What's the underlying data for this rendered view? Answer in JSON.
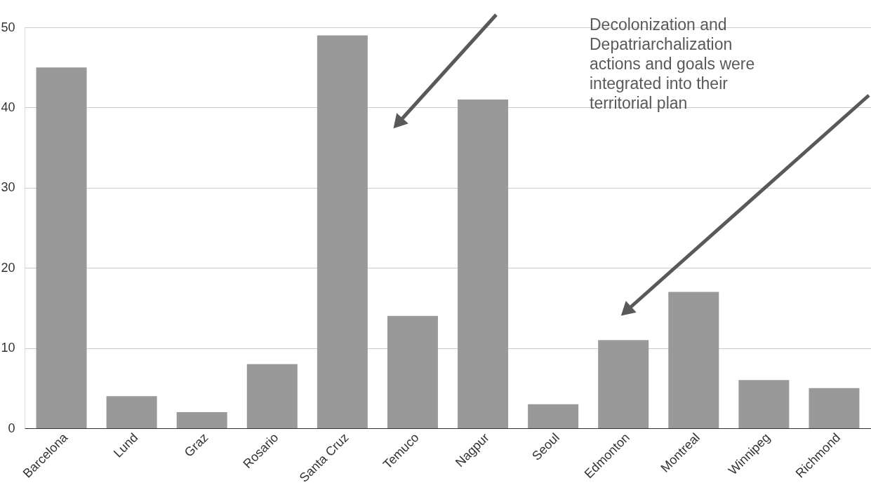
{
  "chart_data": {
    "type": "bar",
    "categories": [
      "Barcelona",
      "Lund",
      "Graz",
      "Rosario",
      "Santa Cruz",
      "Temuco",
      "Nagpur",
      "Seoul",
      "Edmonton",
      "Montreal",
      "Winnipeg",
      "Richmond"
    ],
    "values": [
      45,
      4,
      2,
      8,
      49,
      14,
      41,
      3,
      11,
      17,
      6,
      5
    ],
    "color": "#999999",
    "ylim": [
      0,
      50
    ],
    "yticks": [
      0,
      10,
      20,
      30,
      40,
      50
    ],
    "grid": "y",
    "annotations": [
      "Decolonization and\nDepatriarchalization\nactions and goals were\nintegrated into their\nterritorial plan"
    ]
  }
}
